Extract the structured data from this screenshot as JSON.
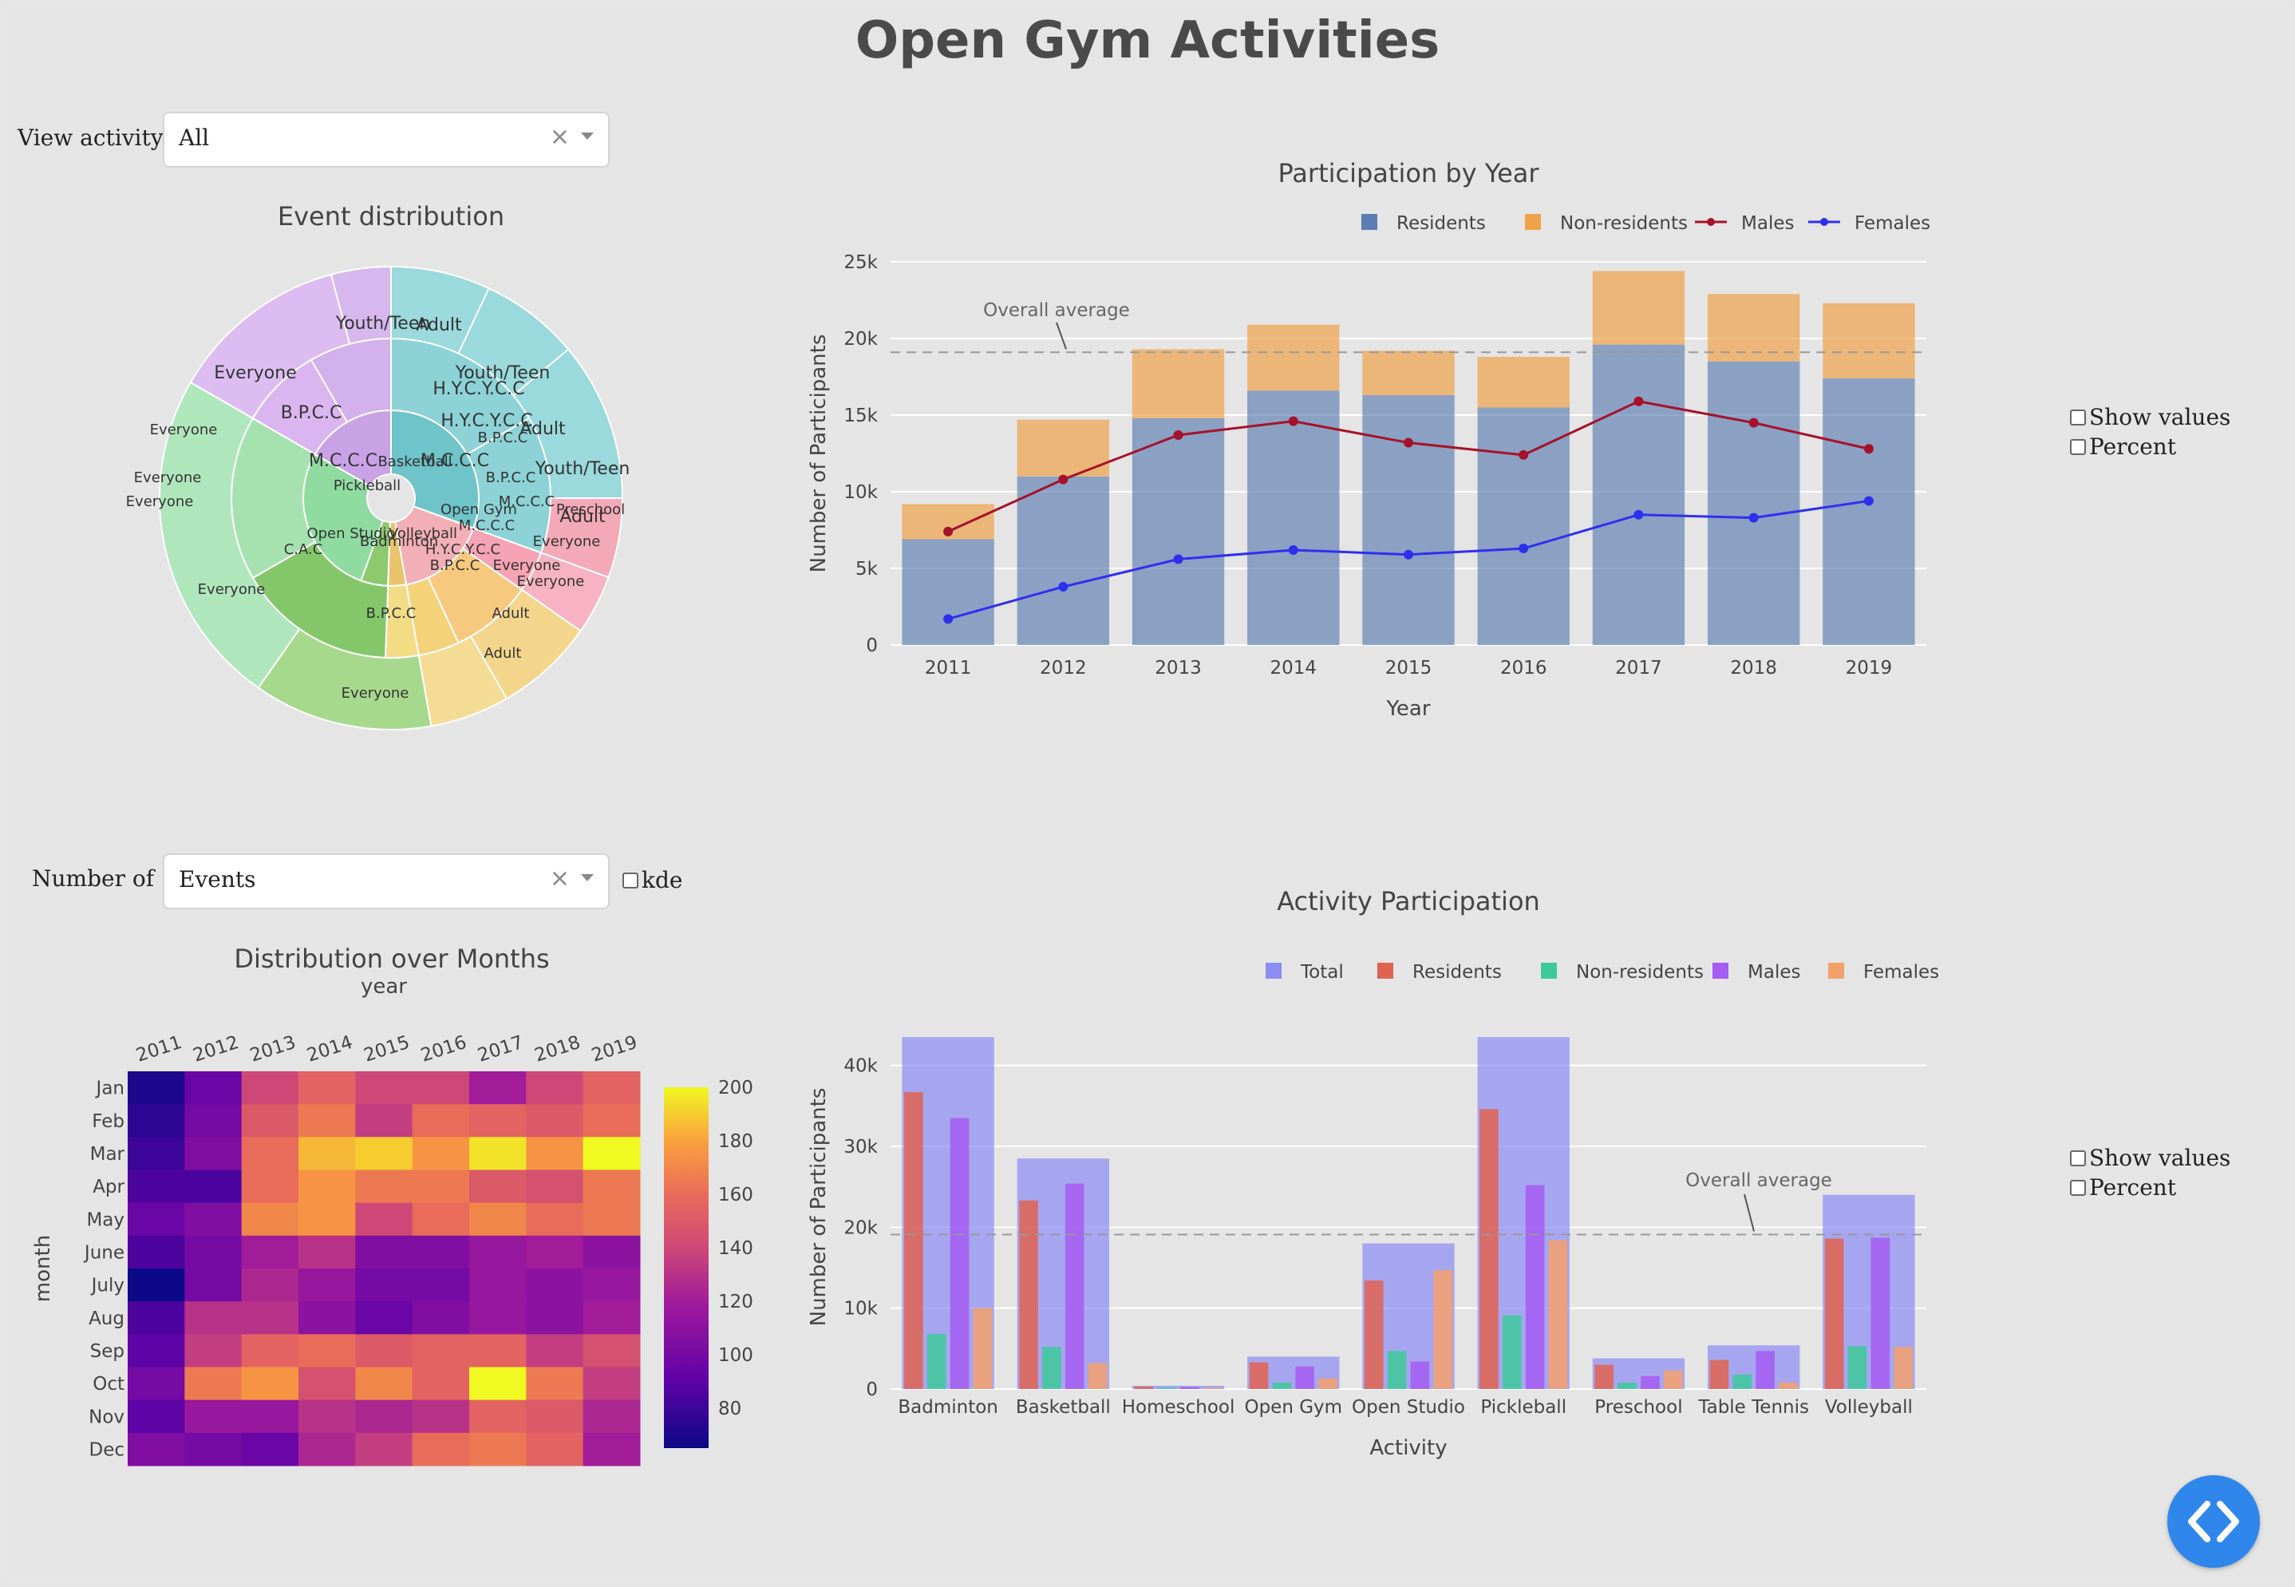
{
  "title": "Open Gym Activities",
  "controls": {
    "view_activity_label": "View activity:",
    "view_activity_value": "All",
    "number_of_label": "Number of",
    "number_of_value": "Events",
    "kde_label": "kde",
    "show_values_label": "Show values",
    "percent_label": "Percent"
  },
  "colors": {
    "residents": "#5b7db1",
    "nonresidents": "#f0a24a",
    "males": "#a5122a",
    "females": "#2f2ff0",
    "total": "#8c8cf5",
    "residents2": "#e0634f",
    "nonresidents2": "#3ec99a",
    "males2": "#a45cf2",
    "females2": "#f4a06b",
    "fab": "#2f86eb"
  },
  "fab_icon": "code-brackets-icon",
  "chart_data": [
    {
      "type": "sunburst",
      "title": "Event distribution",
      "root": [
        {
          "label": "M.C.C.C",
          "children": [
            {
              "label": "Basketball",
              "children": []
            },
            {
              "label": "Pickleball",
              "children": []
            }
          ]
        },
        {
          "label": "H.Y.C.Y.C.C",
          "children": []
        },
        {
          "label": "B.P.C.C",
          "children": []
        },
        {
          "label": "C.A.C",
          "children": [
            {
              "label": "Open Studio",
              "children": []
            },
            {
              "label": "Badminton",
              "children": []
            }
          ]
        },
        {
          "label": "Volleyball",
          "children": []
        }
      ],
      "ring_labels": [
        "Youth/Teen",
        "Adult",
        "Youth/Teen",
        "Adult",
        "Youth/Teen",
        "Adult",
        "Everyone",
        "B.P.C.C",
        "M.C.C.C",
        "H.Y.C.Y.C.C",
        "H.Y.C.Y.C.C",
        "M.C.C.C",
        "B.P.C.C",
        "C.A.C",
        "B.P.C.C",
        "B.P.C.C",
        "Everyone",
        "Everyone",
        "Everyone",
        "Everyone",
        "Adult",
        "Everyone",
        "Preschool",
        "Everyone",
        "Everyone",
        "Adult",
        "Basketball",
        "Pickleball",
        "Open Studio",
        "Badminton",
        "Volleyball",
        "M.C.C.C",
        "B.P.C.C",
        "M.C.C.C",
        "Open Gym",
        "H.Y.C.Y.C.C",
        "Everyone"
      ]
    },
    {
      "type": "bar+line",
      "title": "Participation by Year",
      "xlabel": "Year",
      "ylabel": "Number of Participants",
      "ylim": [
        0,
        25000
      ],
      "yticks": [
        "0",
        "5k",
        "10k",
        "15k",
        "20k",
        "25k"
      ],
      "categories": [
        "2011",
        "2012",
        "2013",
        "2014",
        "2015",
        "2016",
        "2017",
        "2018",
        "2019"
      ],
      "series": [
        {
          "name": "Residents",
          "kind": "bar",
          "values": [
            6900,
            11000,
            14800,
            16600,
            16300,
            15500,
            19600,
            18500,
            17400
          ]
        },
        {
          "name": "Non-residents",
          "kind": "bar",
          "values": [
            2300,
            3700,
            4500,
            4300,
            2900,
            3300,
            4800,
            4400,
            4900
          ]
        },
        {
          "name": "Males",
          "kind": "line",
          "values": [
            7400,
            10800,
            13700,
            14600,
            13200,
            12400,
            15900,
            14500,
            12800
          ]
        },
        {
          "name": "Females",
          "kind": "line",
          "values": [
            1700,
            3800,
            5600,
            6200,
            5900,
            6300,
            8500,
            8300,
            9400
          ]
        }
      ],
      "average": 19100,
      "average_label": "Overall average",
      "legend": "top-right"
    },
    {
      "type": "heatmap",
      "title": "Distribution over Months",
      "xlabel": "year",
      "ylabel": "month",
      "x": [
        "2011",
        "2012",
        "2013",
        "2014",
        "2015",
        "2016",
        "2017",
        "2018",
        "2019"
      ],
      "y": [
        "Jan",
        "Feb",
        "Mar",
        "Apr",
        "May",
        "June",
        "July",
        "Aug",
        "Sep",
        "Oct",
        "Nov",
        "Dec"
      ],
      "z": [
        [
          70,
          95,
          140,
          155,
          140,
          140,
          120,
          140,
          155
        ],
        [
          75,
          100,
          150,
          165,
          135,
          160,
          155,
          150,
          160
        ],
        [
          80,
          105,
          160,
          185,
          190,
          175,
          195,
          175,
          200
        ],
        [
          85,
          85,
          160,
          175,
          165,
          165,
          150,
          145,
          165
        ],
        [
          95,
          105,
          170,
          175,
          140,
          160,
          170,
          160,
          165
        ],
        [
          85,
          100,
          120,
          130,
          105,
          105,
          115,
          120,
          110
        ],
        [
          65,
          100,
          125,
          115,
          100,
          100,
          115,
          110,
          115
        ],
        [
          85,
          130,
          130,
          110,
          95,
          105,
          115,
          110,
          120
        ],
        [
          90,
          135,
          155,
          160,
          150,
          155,
          155,
          135,
          145
        ],
        [
          100,
          165,
          175,
          145,
          170,
          155,
          200,
          165,
          135
        ],
        [
          90,
          115,
          115,
          130,
          125,
          130,
          155,
          150,
          125
        ],
        [
          105,
          100,
          95,
          125,
          135,
          160,
          165,
          155,
          120
        ]
      ],
      "zlim": [
        65,
        200
      ],
      "colorbar_ticks": [
        "80",
        "100",
        "120",
        "140",
        "160",
        "180",
        "200"
      ]
    },
    {
      "type": "bar",
      "title": "Activity Participation",
      "xlabel": "Activity",
      "ylabel": "Number of Participants",
      "ylim": [
        0,
        45000
      ],
      "yticks": [
        "0",
        "10k",
        "20k",
        "30k",
        "40k"
      ],
      "categories": [
        "Badminton",
        "Basketball",
        "Homeschool",
        "Open Gym",
        "Open Studio",
        "Pickleball",
        "Preschool",
        "Table Tennis",
        "Volleyball"
      ],
      "series": [
        {
          "name": "Total",
          "values": [
            43500,
            28500,
            400,
            4000,
            18000,
            43500,
            3800,
            5400,
            24000
          ]
        },
        {
          "name": "Residents",
          "values": [
            36700,
            23300,
            300,
            3300,
            13400,
            34600,
            3000,
            3600,
            18600
          ]
        },
        {
          "name": "Non-residents",
          "values": [
            6800,
            5200,
            150,
            800,
            4700,
            9100,
            800,
            1800,
            5300
          ]
        },
        {
          "name": "Males",
          "values": [
            33500,
            25400,
            250,
            2800,
            3400,
            25200,
            1600,
            4700,
            18700
          ]
        },
        {
          "name": "Females",
          "values": [
            10000,
            3200,
            150,
            1300,
            14700,
            18400,
            2300,
            800,
            5200
          ]
        }
      ],
      "average": 19100,
      "average_label": "Overall average",
      "legend": "top-right"
    }
  ]
}
